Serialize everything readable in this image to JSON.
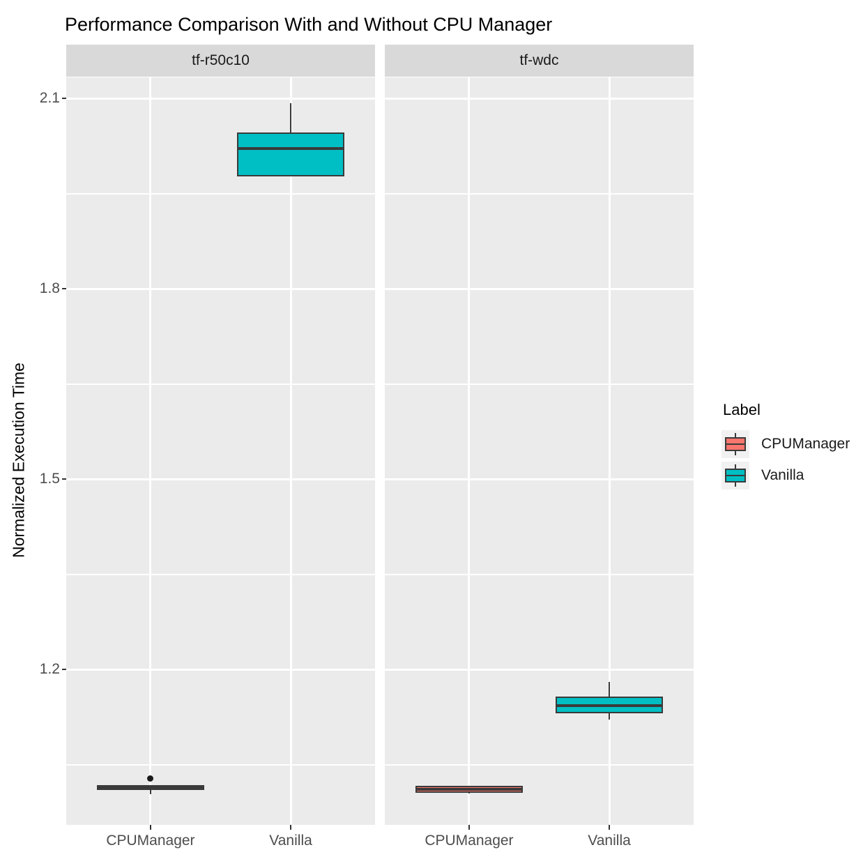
{
  "title": "Performance Comparison With and Without CPU Manager",
  "colors": {
    "panel_background": "#EBEBEB",
    "strip_background": "#D9D9D9",
    "gridline": "#FFFFFF",
    "box_border": "#3A3A3A",
    "tick_text": "#4D4D4D",
    "cpumanager_fill": "#F8766D",
    "vanilla_fill": "#00BFC4"
  },
  "chart_data": {
    "type": "boxplot",
    "title": "Performance Comparison With and Without CPU Manager",
    "ylabel": "Normalized Execution Time",
    "xlabel": "",
    "categories": [
      "CPUManager",
      "Vanilla"
    ],
    "yticks": [
      2.1,
      1.8,
      1.5,
      1.2
    ],
    "yticks_minor": [
      1.95,
      1.65,
      1.35,
      1.05
    ],
    "ylim": [
      0.955,
      2.133
    ],
    "grid": "on",
    "legend_position": "right",
    "facets": [
      {
        "label": "tf-r50c10",
        "boxes": [
          {
            "category": "CPUManager",
            "series": "CPUManager",
            "min": 1.003,
            "q1": 1.01,
            "median": 1.014,
            "q3": 1.018,
            "max": 1.018,
            "outliers": [
              1.028
            ]
          },
          {
            "category": "Vanilla",
            "series": "Vanilla",
            "min": 1.977,
            "q1": 1.977,
            "median": 2.021,
            "q3": 2.046,
            "max": 2.092,
            "outliers": []
          }
        ]
      },
      {
        "label": "tf-wdc",
        "boxes": [
          {
            "category": "CPUManager",
            "series": "CPUManager",
            "min": 1.005,
            "q1": 1.006,
            "median": 1.011,
            "q3": 1.017,
            "max": 1.017,
            "outliers": []
          },
          {
            "category": "Vanilla",
            "series": "Vanilla",
            "min": 1.121,
            "q1": 1.131,
            "median": 1.143,
            "q3": 1.157,
            "max": 1.18,
            "outliers": []
          }
        ]
      }
    ],
    "legend": {
      "title": "Label",
      "entries": [
        {
          "label": "CPUManager",
          "color": "#F8766D"
        },
        {
          "label": "Vanilla",
          "color": "#00BFC4"
        }
      ]
    }
  }
}
